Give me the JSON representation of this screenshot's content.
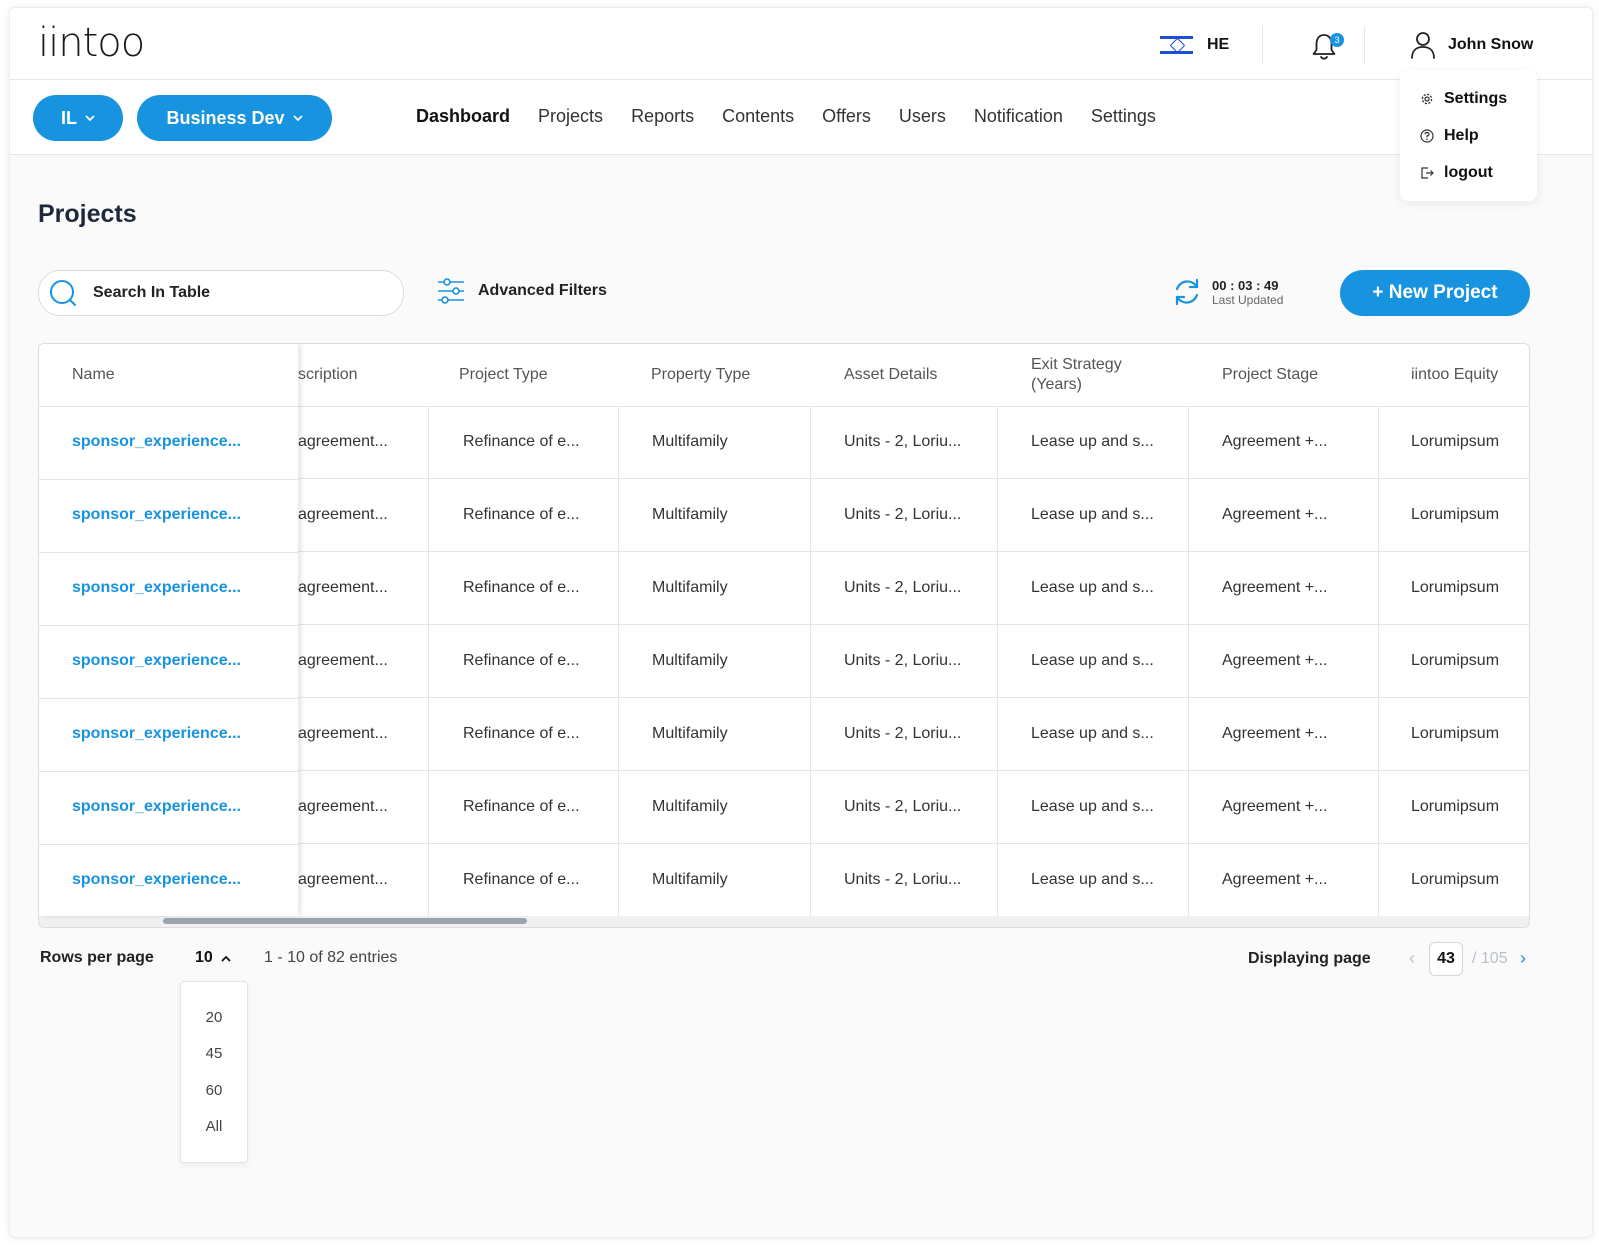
{
  "header": {
    "logo": "iintoo",
    "language": "HE",
    "notification_count": "3",
    "user_name": "John Snow"
  },
  "user_menu": [
    {
      "label": "Settings",
      "icon": "gear-icon"
    },
    {
      "label": "Help",
      "icon": "help-circle-icon"
    },
    {
      "label": "logout",
      "icon": "logout-icon"
    }
  ],
  "filters": {
    "region": "IL",
    "division": "Business Dev"
  },
  "nav": {
    "items": [
      {
        "label": "Dashboard",
        "active": true
      },
      {
        "label": "Projects",
        "active": false
      },
      {
        "label": "Reports",
        "active": false
      },
      {
        "label": "Contents",
        "active": false
      },
      {
        "label": "Offers",
        "active": false
      },
      {
        "label": "Users",
        "active": false
      },
      {
        "label": "Notification",
        "active": false
      },
      {
        "label": "Settings",
        "active": false
      }
    ]
  },
  "page": {
    "title": "Projects"
  },
  "toolbar": {
    "search_placeholder": "Search In Table",
    "advanced_filters": "Advanced Filters",
    "last_updated_time": "00 : 03 : 49",
    "last_updated_label": "Last Updated",
    "new_project": "+ New Project"
  },
  "table": {
    "columns": [
      "Name",
      "scription",
      "Project Type",
      "Property Type",
      "Asset Details",
      "Exit Strategy (Years)",
      "Project Stage",
      "iintoo Equity"
    ],
    "rows": [
      [
        "sponsor_experience...",
        "agreement...",
        "Refinance of e...",
        "Multifamily",
        "Units - 2, Loriu...",
        "Lease up and s...",
        "Agreement +...",
        "Lorumipsum"
      ],
      [
        "sponsor_experience...",
        "agreement...",
        "Refinance of e...",
        "Multifamily",
        "Units - 2, Loriu...",
        "Lease up and s...",
        "Agreement +...",
        "Lorumipsum"
      ],
      [
        "sponsor_experience...",
        "agreement...",
        "Refinance of e...",
        "Multifamily",
        "Units - 2, Loriu...",
        "Lease up and s...",
        "Agreement +...",
        "Lorumipsum"
      ],
      [
        "sponsor_experience...",
        "agreement...",
        "Refinance of e...",
        "Multifamily",
        "Units - 2, Loriu...",
        "Lease up and s...",
        "Agreement +...",
        "Lorumipsum"
      ],
      [
        "sponsor_experience...",
        "agreement...",
        "Refinance of e...",
        "Multifamily",
        "Units - 2, Loriu...",
        "Lease up and s...",
        "Agreement +...",
        "Lorumipsum"
      ],
      [
        "sponsor_experience...",
        "agreement...",
        "Refinance of e...",
        "Multifamily",
        "Units - 2, Loriu...",
        "Lease up and s...",
        "Agreement +...",
        "Lorumipsum"
      ],
      [
        "sponsor_experience...",
        "agreement...",
        "Refinance of e...",
        "Multifamily",
        "Units - 2, Loriu...",
        "Lease up and s...",
        "Agreement +...",
        "Lorumipsum"
      ]
    ]
  },
  "pagination": {
    "rows_per_page_label": "Rows per page",
    "rows_per_page_value": "10",
    "rows_per_page_options": [
      "20",
      "45",
      "60",
      "All"
    ],
    "entries_text": "1 - 10 of 82 entries",
    "displaying_page_label": "Displaying page",
    "current_page": "43",
    "total_pages": "/ 105"
  },
  "colors": {
    "accent": "#1893e0"
  }
}
